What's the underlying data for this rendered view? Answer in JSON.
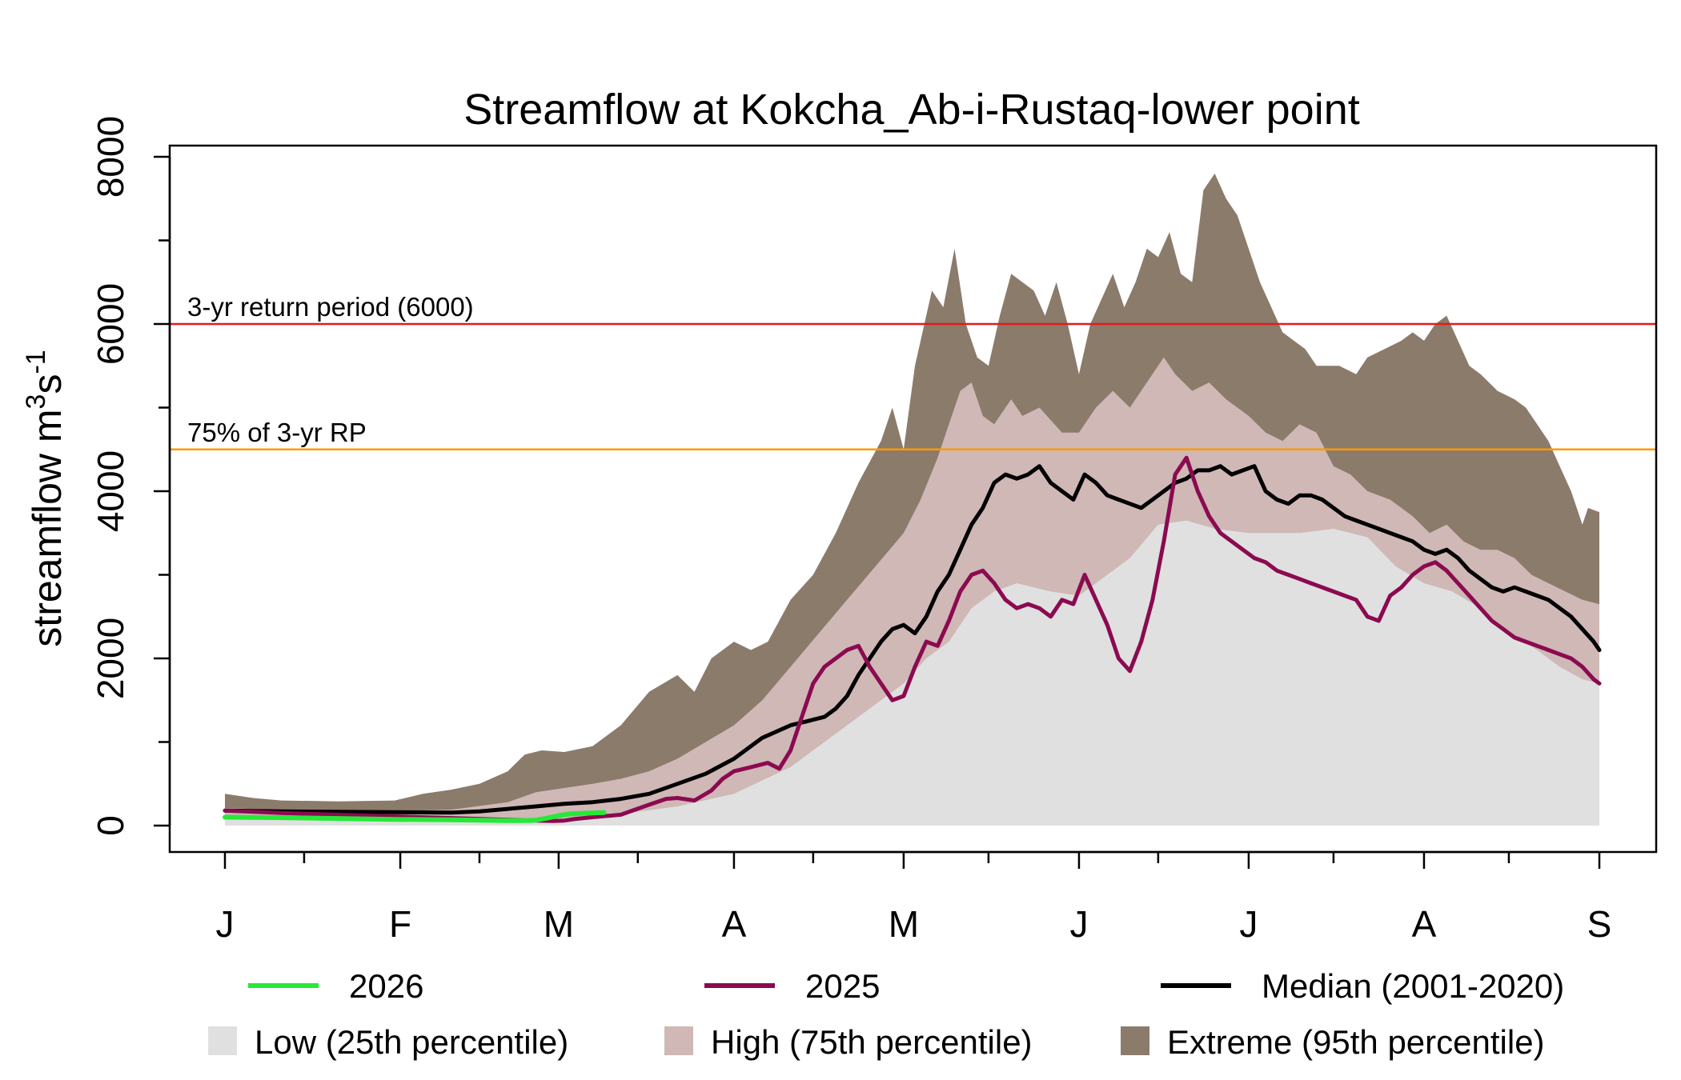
{
  "chart_data": {
    "type": "area",
    "title": "Streamflow at Kokcha_Ab-i-Rustaq-lower point",
    "ylabel": {
      "base": "streamflow m",
      "sup1": "3",
      "mid": "s",
      "sup2": "-1"
    },
    "ylim": [
      0,
      8000
    ],
    "y_ticks": [
      0,
      2000,
      4000,
      6000,
      8000
    ],
    "y_tick_labels": [
      "0",
      "2000",
      "4000",
      "6000",
      "8000"
    ],
    "x_range_days": [
      0,
      243
    ],
    "x_month_ticks": [
      {
        "label": "J",
        "day": 0
      },
      {
        "label": "F",
        "day": 31
      },
      {
        "label": "M",
        "day": 59
      },
      {
        "label": "A",
        "day": 90
      },
      {
        "label": "M",
        "day": 120
      },
      {
        "label": "J",
        "day": 151
      },
      {
        "label": "J",
        "day": 181
      },
      {
        "label": "A",
        "day": 212
      },
      {
        "label": "S",
        "day": 243
      }
    ],
    "x_minor_ticks": [
      14,
      45,
      73,
      104,
      135,
      165,
      196,
      227
    ],
    "reference_lines": [
      {
        "label": "3-yr return period (6000)",
        "value": 6000,
        "color": "#e31a1c"
      },
      {
        "label": "75% of 3-yr RP",
        "value": 4500,
        "color": "#ff9900"
      }
    ],
    "bands": {
      "low_25th": {
        "name": "Low (25th percentile)",
        "color": "#e0e0e0",
        "x": [
          0,
          30,
          50,
          56,
          60,
          70,
          80,
          90,
          100,
          110,
          120,
          124,
          128,
          132,
          136,
          140,
          146,
          151,
          156,
          160,
          165,
          170,
          175,
          181,
          186,
          190,
          196,
          202,
          207,
          212,
          217,
          222,
          227,
          232,
          236,
          240,
          243
        ],
        "y": [
          90,
          80,
          70,
          70,
          90,
          140,
          230,
          380,
          700,
          1200,
          1700,
          2000,
          2200,
          2600,
          2800,
          2900,
          2800,
          2750,
          3000,
          3200,
          3600,
          3650,
          3550,
          3500,
          3500,
          3500,
          3550,
          3450,
          3100,
          2900,
          2800,
          2600,
          2300,
          2100,
          1900,
          1750,
          1700
        ]
      },
      "high_75th": {
        "name": "High (75th percentile)",
        "color": "#cfb8b6",
        "x": [
          0,
          10,
          20,
          30,
          40,
          50,
          55,
          60,
          65,
          70,
          75,
          80,
          85,
          90,
          95,
          100,
          105,
          110,
          115,
          120,
          123,
          126,
          128,
          130,
          132,
          134,
          136,
          139,
          141,
          144,
          148,
          151,
          154,
          157,
          160,
          163,
          166,
          168,
          171,
          174,
          177,
          181,
          184,
          187,
          190,
          193,
          196,
          199,
          202,
          206,
          210,
          213,
          216,
          219,
          222,
          225,
          228,
          231,
          234,
          237,
          240,
          243
        ],
        "y": [
          210,
          190,
          180,
          175,
          190,
          280,
          400,
          450,
          500,
          560,
          650,
          800,
          1000,
          1200,
          1500,
          1900,
          2300,
          2700,
          3100,
          3500,
          3900,
          4400,
          4800,
          5200,
          5300,
          4900,
          4800,
          5100,
          4900,
          5000,
          4700,
          4700,
          5000,
          5200,
          5000,
          5300,
          5600,
          5400,
          5200,
          5300,
          5100,
          4900,
          4700,
          4600,
          4800,
          4700,
          4300,
          4200,
          4000,
          3900,
          3700,
          3500,
          3600,
          3400,
          3300,
          3300,
          3200,
          3000,
          2900,
          2800,
          2700,
          2650
        ]
      },
      "extreme_95th": {
        "name": "Extreme (95th percentile)",
        "color": "#8b7b6b",
        "x": [
          0,
          5,
          10,
          20,
          30,
          35,
          40,
          45,
          50,
          53,
          56,
          60,
          65,
          70,
          75,
          80,
          83,
          86,
          90,
          93,
          96,
          100,
          104,
          108,
          112,
          116,
          118,
          120,
          122,
          125,
          127,
          129,
          131,
          133,
          135,
          137,
          139,
          141,
          143,
          145,
          147,
          149,
          151,
          153,
          155,
          157,
          159,
          161,
          163,
          165,
          167,
          169,
          171,
          173,
          175,
          177,
          179,
          181,
          183,
          185,
          187,
          189,
          191,
          193,
          195,
          197,
          200,
          202,
          205,
          208,
          210,
          212,
          214,
          216,
          218,
          220,
          222,
          225,
          228,
          230,
          232,
          234,
          236,
          238,
          240,
          241,
          243
        ],
        "y": [
          380,
          330,
          300,
          290,
          300,
          380,
          430,
          500,
          650,
          850,
          900,
          880,
          950,
          1200,
          1600,
          1800,
          1600,
          2000,
          2200,
          2100,
          2200,
          2700,
          3000,
          3500,
          4100,
          4600,
          5000,
          4500,
          5500,
          6400,
          6200,
          6900,
          6000,
          5600,
          5500,
          6100,
          6600,
          6500,
          6400,
          6100,
          6500,
          6000,
          5400,
          6000,
          6300,
          6600,
          6200,
          6500,
          6900,
          6800,
          7100,
          6600,
          6500,
          7600,
          7800,
          7500,
          7300,
          6900,
          6500,
          6200,
          5900,
          5800,
          5700,
          5500,
          5500,
          5500,
          5400,
          5600,
          5700,
          5800,
          5900,
          5800,
          6000,
          6100,
          5800,
          5500,
          5400,
          5200,
          5100,
          5000,
          4800,
          4600,
          4300,
          4000,
          3600,
          3800,
          3750
        ]
      }
    },
    "series": [
      {
        "name": "Median (2001-2020)",
        "color": "#000000",
        "x": [
          0,
          10,
          20,
          30,
          40,
          45,
          50,
          55,
          60,
          65,
          70,
          75,
          80,
          85,
          90,
          95,
          100,
          103,
          106,
          108,
          110,
          112,
          114,
          116,
          118,
          120,
          122,
          124,
          126,
          128,
          130,
          132,
          134,
          136,
          138,
          140,
          142,
          144,
          146,
          148,
          150,
          152,
          154,
          156,
          158,
          160,
          162,
          164,
          166,
          168,
          170,
          172,
          174,
          176,
          178,
          180,
          182,
          184,
          186,
          188,
          190,
          192,
          194,
          196,
          198,
          200,
          202,
          204,
          206,
          208,
          210,
          212,
          214,
          216,
          218,
          220,
          222,
          224,
          226,
          228,
          230,
          232,
          234,
          236,
          238,
          240,
          242,
          243
        ],
        "y": [
          180,
          170,
          165,
          160,
          155,
          170,
          200,
          230,
          260,
          280,
          320,
          380,
          500,
          620,
          800,
          1050,
          1200,
          1250,
          1300,
          1400,
          1550,
          1800,
          2000,
          2200,
          2350,
          2400,
          2300,
          2500,
          2800,
          3000,
          3300,
          3600,
          3800,
          4100,
          4200,
          4150,
          4200,
          4300,
          4100,
          4000,
          3900,
          4200,
          4100,
          3950,
          3900,
          3850,
          3800,
          3900,
          4000,
          4100,
          4150,
          4250,
          4250,
          4300,
          4200,
          4250,
          4300,
          4000,
          3900,
          3850,
          3950,
          3950,
          3900,
          3800,
          3700,
          3650,
          3600,
          3550,
          3500,
          3450,
          3400,
          3300,
          3250,
          3300,
          3200,
          3050,
          2950,
          2850,
          2800,
          2850,
          2800,
          2750,
          2700,
          2600,
          2500,
          2350,
          2200,
          2100
        ]
      },
      {
        "name": "2025",
        "color": "#8b0a50",
        "x": [
          0,
          10,
          20,
          30,
          40,
          50,
          55,
          58,
          60,
          62,
          65,
          70,
          75,
          78,
          80,
          83,
          86,
          88,
          90,
          93,
          96,
          98,
          100,
          102,
          104,
          106,
          108,
          110,
          112,
          114,
          116,
          118,
          120,
          122,
          124,
          126,
          128,
          130,
          132,
          134,
          136,
          138,
          140,
          142,
          144,
          146,
          148,
          150,
          152,
          154,
          156,
          158,
          160,
          162,
          164,
          166,
          168,
          170,
          172,
          174,
          176,
          178,
          180,
          182,
          184,
          186,
          188,
          190,
          192,
          194,
          196,
          198,
          200,
          202,
          204,
          206,
          208,
          210,
          212,
          214,
          216,
          218,
          220,
          222,
          224,
          226,
          228,
          230,
          232,
          234,
          236,
          238,
          240,
          242,
          243
        ],
        "y": [
          180,
          150,
          130,
          110,
          90,
          70,
          60,
          55,
          60,
          80,
          100,
          130,
          250,
          320,
          330,
          300,
          420,
          560,
          650,
          700,
          750,
          680,
          900,
          1300,
          1700,
          1900,
          2000,
          2100,
          2150,
          1900,
          1700,
          1500,
          1550,
          1900,
          2200,
          2150,
          2450,
          2800,
          3000,
          3050,
          2900,
          2700,
          2600,
          2650,
          2600,
          2500,
          2700,
          2650,
          3000,
          2700,
          2400,
          2000,
          1850,
          2200,
          2700,
          3400,
          4200,
          4400,
          4000,
          3700,
          3500,
          3400,
          3300,
          3200,
          3150,
          3050,
          3000,
          2950,
          2900,
          2850,
          2800,
          2750,
          2700,
          2500,
          2450,
          2750,
          2850,
          3000,
          3100,
          3150,
          3050,
          2900,
          2750,
          2600,
          2450,
          2350,
          2250,
          2200,
          2150,
          2100,
          2050,
          2000,
          1900,
          1750,
          1700
        ]
      },
      {
        "name": "2026",
        "color": "#27e838",
        "x": [
          0,
          10,
          20,
          30,
          40,
          45,
          50,
          53,
          55,
          57,
          59,
          61,
          63,
          65,
          67
        ],
        "y": [
          100,
          95,
          85,
          75,
          70,
          65,
          60,
          60,
          65,
          90,
          120,
          140,
          145,
          150,
          155
        ]
      }
    ],
    "legend": {
      "placement": "bottom",
      "items": [
        {
          "label": "2026",
          "kind": "line",
          "color": "#27e838"
        },
        {
          "label": "2025",
          "kind": "line",
          "color": "#8b0a50"
        },
        {
          "label": "Median (2001-2020)",
          "kind": "line",
          "color": "#000000"
        },
        {
          "label": "Low (25th percentile)",
          "kind": "box",
          "color": "#e0e0e0"
        },
        {
          "label": "High (75th percentile)",
          "kind": "box",
          "color": "#cfb8b6"
        },
        {
          "label": "Extreme (95th percentile)",
          "kind": "box",
          "color": "#8b7b6b"
        }
      ]
    }
  }
}
